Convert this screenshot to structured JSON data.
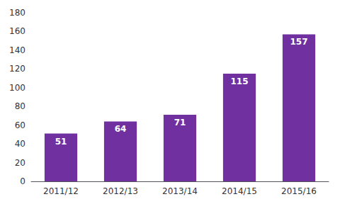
{
  "chart_data": {
    "type": "bar",
    "categories": [
      "2011/12",
      "2012/13",
      "2013/14",
      "2014/15",
      "2015/16"
    ],
    "values": [
      51,
      64,
      71,
      115,
      157
    ],
    "color": "#7030a0",
    "ylim": [
      0,
      180
    ],
    "yticks": [
      0,
      20,
      40,
      60,
      80,
      100,
      120,
      140,
      160,
      180
    ],
    "grid": false,
    "data_labels": true
  }
}
